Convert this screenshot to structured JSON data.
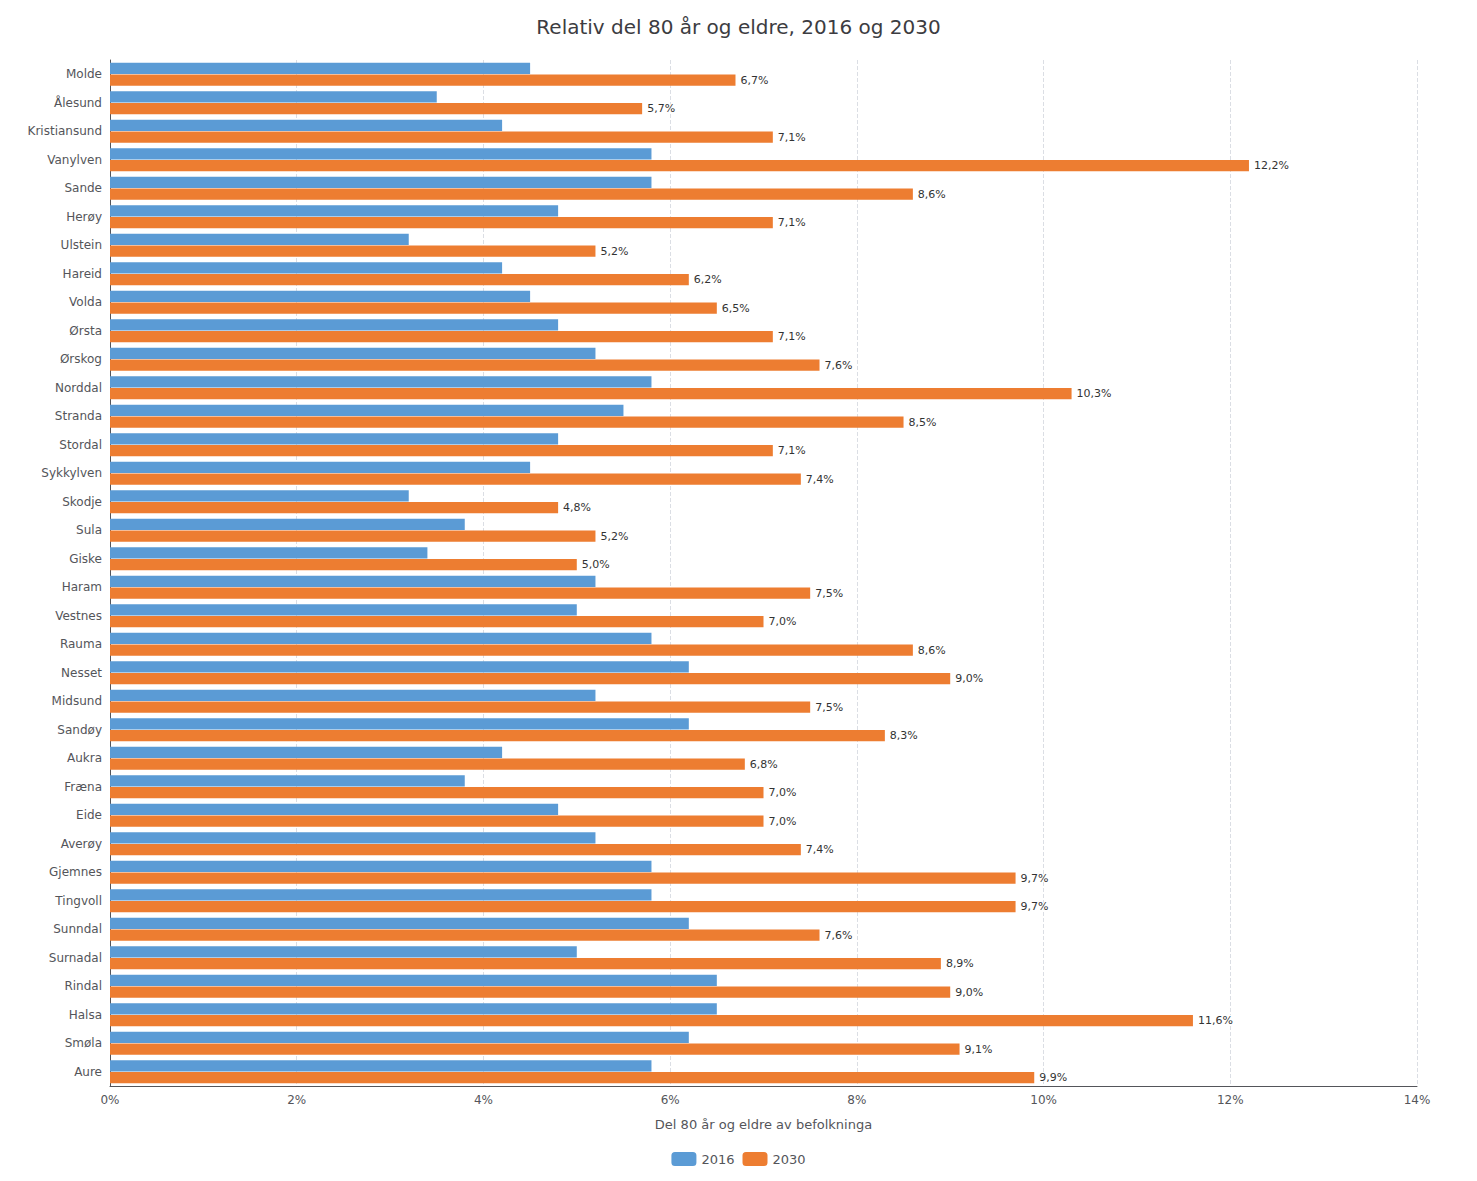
{
  "chart_data": {
    "type": "bar",
    "orientation": "horizontal",
    "title": "Relativ del 80 år og eldre, 2016 og 2030",
    "xlabel": "Del 80 år og eldre av befolkninga",
    "categories": [
      "Molde",
      "Ålesund",
      "Kristiansund",
      "Vanylven",
      "Sande",
      "Herøy",
      "Ulstein",
      "Hareid",
      "Volda",
      "Ørsta",
      "Ørskog",
      "Norddal",
      "Stranda",
      "Stordal",
      "Sykkylven",
      "Skodje",
      "Sula",
      "Giske",
      "Haram",
      "Vestnes",
      "Rauma",
      "Nesset",
      "Midsund",
      "Sandøy",
      "Aukra",
      "Fræna",
      "Eide",
      "Averøy",
      "Gjemnes",
      "Tingvoll",
      "Sunndal",
      "Surnadal",
      "Rindal",
      "Halsa",
      "Smøla",
      "Aure"
    ],
    "series": [
      {
        "name": "2016",
        "color": "#5B9BD5",
        "values": [
          4.5,
          3.5,
          4.2,
          5.8,
          5.8,
          4.8,
          3.2,
          4.2,
          4.5,
          4.8,
          5.2,
          5.8,
          5.5,
          4.8,
          4.5,
          3.2,
          3.8,
          3.4,
          5.2,
          5.0,
          5.8,
          6.2,
          5.2,
          6.2,
          4.2,
          3.8,
          4.8,
          5.2,
          5.8,
          5.8,
          6.2,
          5.0,
          6.5,
          6.5,
          6.2,
          5.8
        ]
      },
      {
        "name": "2030",
        "color": "#ED7D31",
        "data_labels": true,
        "values": [
          6.7,
          5.7,
          7.1,
          12.2,
          8.6,
          7.1,
          5.2,
          6.2,
          6.5,
          7.1,
          7.6,
          10.3,
          8.5,
          7.1,
          7.4,
          4.8,
          5.2,
          5.0,
          7.5,
          7.0,
          8.6,
          9.0,
          7.5,
          8.3,
          6.8,
          7.0,
          7.0,
          7.4,
          9.7,
          9.7,
          7.6,
          8.9,
          9.0,
          11.6,
          9.1,
          9.9
        ],
        "value_labels": [
          "6,7%",
          "5,7%",
          "7,1%",
          "12,2%",
          "8,6%",
          "7,1%",
          "5,2%",
          "6,2%",
          "6,5%",
          "7,1%",
          "7,6%",
          "10,3%",
          "8,5%",
          "7,1%",
          "7,4%",
          "4,8%",
          "5,2%",
          "5,0%",
          "7,5%",
          "7,0%",
          "8,6%",
          "9,0%",
          "7,5%",
          "8,3%",
          "6,8%",
          "7,0%",
          "7,0%",
          "7,4%",
          "9,7%",
          "9,7%",
          "7,6%",
          "8,9%",
          "9,0%",
          "11,6%",
          "9,1%",
          "9,9%"
        ]
      }
    ],
    "xlim": [
      0,
      14
    ],
    "xticks": [
      {
        "value": 0,
        "label": "0%"
      },
      {
        "value": 2,
        "label": "2%"
      },
      {
        "value": 4,
        "label": "4%"
      },
      {
        "value": 6,
        "label": "6%"
      },
      {
        "value": 8,
        "label": "8%"
      },
      {
        "value": 10,
        "label": "10%"
      },
      {
        "value": 12,
        "label": "12%"
      },
      {
        "value": 14,
        "label": "14%"
      }
    ],
    "grid": true,
    "legend": "bottom"
  }
}
